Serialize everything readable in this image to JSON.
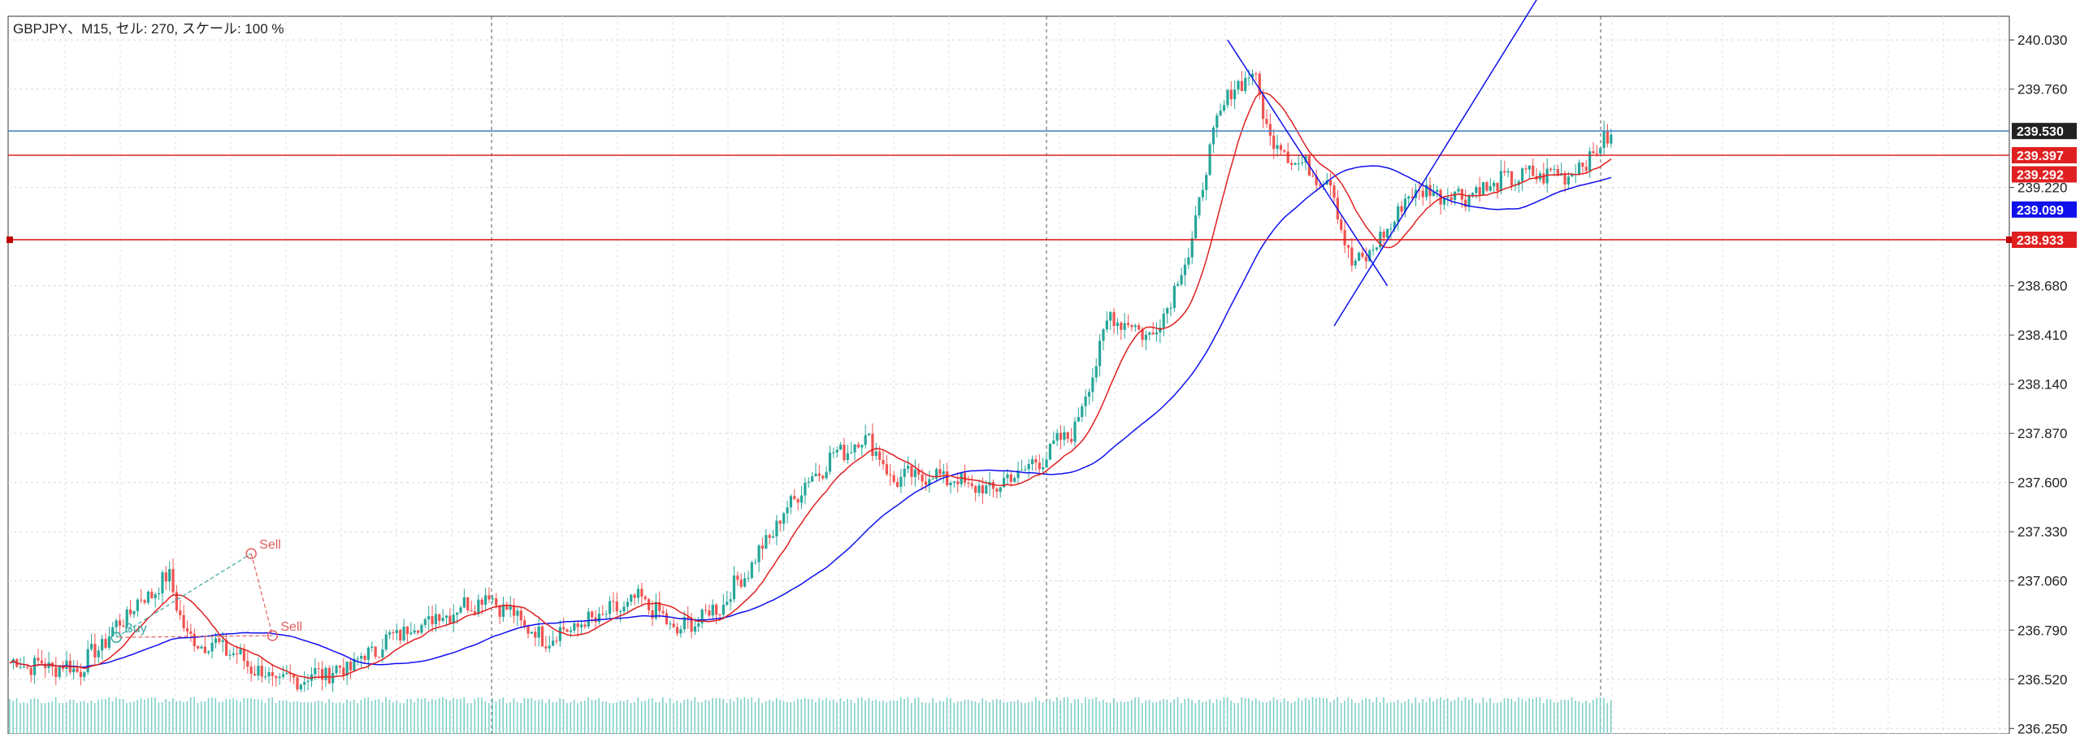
{
  "chart_title": "GBPJPY、M15, セル: 270, スケール: 100 %",
  "chart_data": {
    "type": "candlestick",
    "symbol": "GBPJPY",
    "timeframe": "M15",
    "ylim": [
      236.22,
      240.16
    ],
    "y_ticks": [
      "240.030",
      "239.760",
      "239.220",
      "238.680",
      "238.410",
      "238.140",
      "237.870",
      "237.600",
      "237.330",
      "237.060",
      "236.790",
      "236.520",
      "236.250"
    ],
    "key_points": [
      {
        "i": 0,
        "close": 236.61
      },
      {
        "i": 20,
        "close": 236.58
      },
      {
        "i": 35,
        "close": 236.92
      },
      {
        "i": 45,
        "close": 237.08
      },
      {
        "i": 50,
        "close": 236.74
      },
      {
        "i": 60,
        "close": 236.7
      },
      {
        "i": 75,
        "close": 236.5
      },
      {
        "i": 95,
        "close": 236.58
      },
      {
        "i": 110,
        "close": 236.78
      },
      {
        "i": 135,
        "close": 236.98
      },
      {
        "i": 150,
        "close": 236.74
      },
      {
        "i": 165,
        "close": 236.85
      },
      {
        "i": 178,
        "close": 236.96
      },
      {
        "i": 188,
        "close": 236.78
      },
      {
        "i": 200,
        "close": 236.92
      },
      {
        "i": 210,
        "close": 237.18
      },
      {
        "i": 222,
        "close": 237.55
      },
      {
        "i": 232,
        "close": 237.75
      },
      {
        "i": 242,
        "close": 237.85
      },
      {
        "i": 248,
        "close": 237.62
      },
      {
        "i": 262,
        "close": 237.64
      },
      {
        "i": 275,
        "close": 237.55
      },
      {
        "i": 290,
        "close": 237.72
      },
      {
        "i": 300,
        "close": 237.9
      },
      {
        "i": 310,
        "close": 238.52
      },
      {
        "i": 322,
        "close": 238.4
      },
      {
        "i": 332,
        "close": 238.85
      },
      {
        "i": 340,
        "close": 239.6
      },
      {
        "i": 346,
        "close": 239.8
      },
      {
        "i": 350,
        "close": 239.85
      },
      {
        "i": 355,
        "close": 239.5
      },
      {
        "i": 363,
        "close": 239.35
      },
      {
        "i": 372,
        "close": 239.25
      },
      {
        "i": 378,
        "close": 238.78
      },
      {
        "i": 385,
        "close": 238.9
      },
      {
        "i": 395,
        "close": 239.2
      },
      {
        "i": 410,
        "close": 239.18
      },
      {
        "i": 425,
        "close": 239.28
      },
      {
        "i": 440,
        "close": 239.3
      },
      {
        "i": 451,
        "close": 239.5
      }
    ],
    "horizontal_lines": [
      {
        "price": 239.53,
        "label": "239.530",
        "color": "#4a86c8",
        "tag_bg": "#222222"
      },
      {
        "price": 239.397,
        "label": "239.397",
        "color": "#e02020",
        "tag_bg": "#e02020"
      },
      {
        "price": 238.933,
        "label": "238.933",
        "color": "#e02020",
        "tag_bg": "#e02020"
      }
    ],
    "indicator_tags": [
      {
        "price": 239.292,
        "label": "239.292",
        "tag_bg": "#e02020"
      },
      {
        "price": 239.099,
        "label": "239.099",
        "tag_bg": "#1010ee"
      }
    ],
    "trendlines": [
      {
        "from": [
          343,
          240.03
        ],
        "to": [
          388,
          238.68
        ],
        "color": "#1010ee"
      },
      {
        "from": [
          373,
          238.46
        ],
        "to": [
          430,
          240.25
        ],
        "color": "#1010ee"
      }
    ],
    "trades": [
      {
        "type": "Buy",
        "label": "Buy",
        "entry": [
          30,
          236.75
        ],
        "exit": [
          68,
          237.21
        ],
        "color": "#3aa7a0"
      },
      {
        "type": "Sell",
        "label": "Sell",
        "entry": [
          68,
          237.21
        ],
        "exit": [
          74,
          236.76
        ],
        "color": "#e06060"
      },
      {
        "type": "Sell",
        "label": "Sell",
        "entry": [
          74,
          236.76
        ],
        "exit": [
          30,
          236.75
        ],
        "color": "#e06060"
      }
    ],
    "colors": {
      "bull": "#26a69a",
      "bear": "#ef5350",
      "ma_fast": "#e02020",
      "ma_slow": "#1010ee",
      "volume": "#26a69a"
    },
    "grid": true
  }
}
